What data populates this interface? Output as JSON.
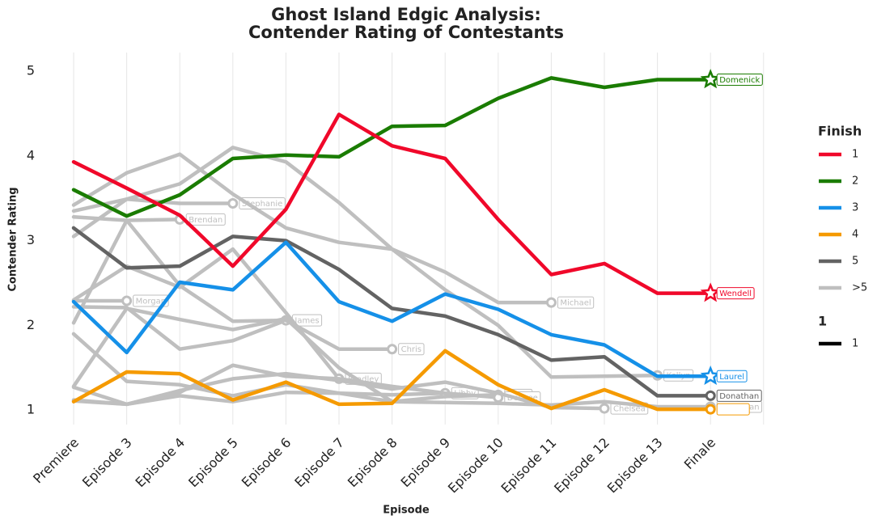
{
  "chart_data": {
    "type": "line",
    "title": "Ghost Island Edgic Analysis:",
    "subtitle": "Contender Rating of Contestants",
    "x_label": "Episode",
    "y_label": "Contender Rating",
    "categories": [
      "Premiere",
      "Episode 3",
      "Episode 4",
      "Episode 5",
      "Episode 6",
      "Episode 7",
      "Episode 8",
      "Episode 9",
      "Episode 10",
      "Episode 11",
      "Episode 12",
      "Episode 13",
      "Finale"
    ],
    "ylim": [
      0.83,
      5.22
    ],
    "yticks": [
      1,
      2,
      3,
      4,
      5
    ],
    "grid": "x",
    "series": [
      {
        "name": "Morgan",
        "color": "#bfbfbf",
        "marker": "circle",
        "values": [
          2.29,
          2.29,
          null,
          null,
          null,
          null,
          null,
          null,
          null,
          null,
          null,
          null,
          null
        ]
      },
      {
        "name": "Brendan",
        "color": "#bfbfbf",
        "marker": "circle",
        "values": [
          3.28,
          3.24,
          3.25,
          null,
          null,
          null,
          null,
          null,
          null,
          null,
          null,
          null,
          null
        ]
      },
      {
        "name": "Stephanie",
        "color": "#bfbfbf",
        "marker": "circle",
        "values": [
          3.35,
          3.49,
          3.44,
          3.44,
          null,
          null,
          null,
          null,
          null,
          null,
          null,
          null,
          null
        ]
      },
      {
        "name": "James",
        "color": "#bfbfbf",
        "marker": "circle",
        "values": [
          2.22,
          2.21,
          1.72,
          1.82,
          2.06,
          null,
          null,
          null,
          null,
          null,
          null,
          null,
          null
        ]
      },
      {
        "name": "Bradley",
        "color": "#bfbfbf",
        "marker": "circle",
        "values": [
          2.3,
          2.7,
          2.45,
          2.9,
          2.15,
          1.37,
          null,
          null,
          null,
          null,
          null,
          null,
          null
        ]
      },
      {
        "name": "Chris",
        "color": "#bfbfbf",
        "marker": "circle",
        "values": [
          2.03,
          3.24,
          2.47,
          2.05,
          2.06,
          1.72,
          1.72,
          null,
          null,
          null,
          null,
          null,
          null
        ]
      },
      {
        "name": "Libby",
        "color": "#bfbfbf",
        "marker": "circle",
        "values": [
          1.9,
          1.34,
          1.3,
          1.17,
          1.3,
          1.2,
          1.18,
          1.2,
          null,
          null,
          null,
          null,
          null
        ]
      },
      {
        "name": "Jenna",
        "color": "#bfbfbf",
        "marker": "circle",
        "values": [
          1.28,
          2.2,
          2.07,
          1.95,
          2.08,
          1.5,
          1.1,
          1.16,
          1.18,
          null,
          null,
          null,
          null
        ]
      },
      {
        "name": "Desiree",
        "color": "#bfbfbf",
        "marker": "circle",
        "values": [
          1.27,
          1.07,
          1.21,
          1.53,
          1.4,
          1.37,
          1.28,
          1.2,
          1.15,
          null,
          null,
          null,
          null
        ]
      },
      {
        "name": "Michael",
        "color": "#bfbfbf",
        "marker": "circle",
        "values": [
          3.05,
          3.49,
          3.67,
          4.1,
          3.93,
          3.45,
          2.9,
          2.63,
          2.27,
          2.27,
          null,
          null,
          null
        ]
      },
      {
        "name": "Chelsea",
        "color": "#bfbfbf",
        "marker": "circle",
        "values": [
          1.12,
          1.07,
          1.23,
          1.37,
          1.43,
          1.35,
          1.25,
          1.33,
          1.2,
          1.03,
          1.02,
          null,
          null
        ]
      },
      {
        "name": "Kellyn",
        "color": "#bfbfbf",
        "marker": "circle",
        "values": [
          3.42,
          3.8,
          4.02,
          3.55,
          3.15,
          2.98,
          2.9,
          2.42,
          2.0,
          1.39,
          1.4,
          1.41,
          null
        ]
      },
      {
        "name": "Sebastian",
        "color": "#bfbfbf",
        "marker": "circle",
        "values": [
          1.11,
          1.07,
          1.17,
          1.1,
          1.21,
          1.2,
          1.1,
          1.09,
          1.08,
          1.06,
          1.1,
          1.04,
          1.04
        ]
      },
      {
        "name": "Donathan",
        "color": "#636363",
        "marker": "circle",
        "values": [
          3.15,
          2.68,
          2.7,
          3.05,
          3.0,
          2.66,
          2.2,
          2.11,
          1.89,
          1.59,
          1.63,
          1.17,
          1.17
        ]
      },
      {
        "color": "#f59a00",
        "marker": "circle",
        "values": [
          1.1,
          1.45,
          1.43,
          1.12,
          1.33,
          1.07,
          1.08,
          1.7,
          1.3,
          1.02,
          1.24,
          1.01,
          1.01
        ]
      },
      {
        "name": "Laurel",
        "color": "#1590e8",
        "marker": "star",
        "values": [
          2.28,
          1.68,
          2.51,
          2.42,
          2.98,
          2.28,
          2.05,
          2.37,
          2.19,
          1.89,
          1.77,
          1.4,
          1.4
        ]
      },
      {
        "name": "Domenick",
        "color": "#1a7c00",
        "marker": "star",
        "values": [
          3.6,
          3.29,
          3.54,
          3.97,
          4.01,
          3.99,
          4.35,
          4.36,
          4.68,
          4.92,
          4.81,
          4.9,
          4.9
        ]
      },
      {
        "name": "Wendell",
        "color": "#f0082a",
        "marker": "star",
        "values": [
          3.93,
          3.62,
          3.3,
          2.7,
          3.37,
          4.49,
          4.12,
          3.97,
          3.25,
          2.6,
          2.73,
          2.38,
          2.38
        ]
      }
    ],
    "legend": {
      "title": "Finish",
      "items": [
        {
          "label": "1",
          "color": "#f0082a"
        },
        {
          "label": "2",
          "color": "#1a7c00"
        },
        {
          "label": "3",
          "color": "#1590e8"
        },
        {
          "label": "4",
          "color": "#f59a00"
        },
        {
          "label": "5",
          "color": "#636363"
        },
        {
          "label": ">5",
          "color": "#bfbfbf"
        }
      ]
    },
    "size_legend": {
      "title": "1",
      "items": [
        {
          "label": "1",
          "color": "#000000"
        }
      ]
    }
  }
}
